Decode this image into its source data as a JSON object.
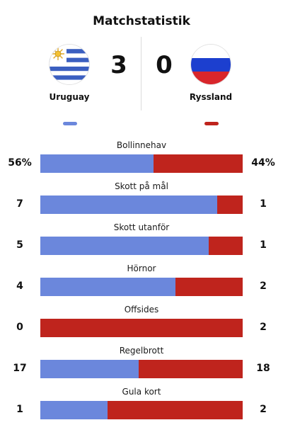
{
  "title": "Matchstatistik",
  "colors": {
    "home": "#6B87DC",
    "away": "#BF241D"
  },
  "home": {
    "name": "Uruguay",
    "score": "3",
    "flag_icon": "uruguay-flag-icon"
  },
  "away": {
    "name": "Ryssland",
    "score": "0",
    "flag_icon": "russia-flag-icon"
  },
  "stats": [
    {
      "label": "Bollinnehav",
      "home": "56%",
      "away": "44%",
      "home_share": 0.56
    },
    {
      "label": "Skott på mål",
      "home": "7",
      "away": "1",
      "home_share": 0.875
    },
    {
      "label": "Skott utanför",
      "home": "5",
      "away": "1",
      "home_share": 0.833
    },
    {
      "label": "Hörnor",
      "home": "4",
      "away": "2",
      "home_share": 0.667
    },
    {
      "label": "Offsides",
      "home": "0",
      "away": "2",
      "home_share": 0.0
    },
    {
      "label": "Regelbrott",
      "home": "17",
      "away": "18",
      "home_share": 0.486
    },
    {
      "label": "Gula kort",
      "home": "1",
      "away": "2",
      "home_share": 0.333
    }
  ]
}
